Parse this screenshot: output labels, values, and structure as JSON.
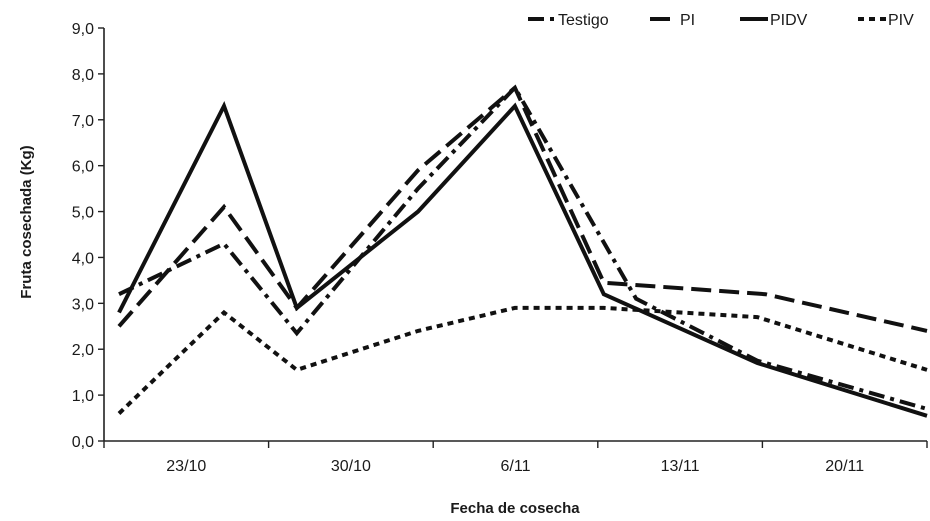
{
  "chart_data": {
    "type": "line",
    "xlabel": "Fecha de cosecha",
    "ylabel": "Fruta cosechada (Kg)",
    "ylim": [
      0,
      9
    ],
    "yticks": [
      "0,0",
      "1,0",
      "2,0",
      "3,0",
      "4,0",
      "5,0",
      "6,0",
      "7,0",
      "8,0",
      "9,0"
    ],
    "category_labels": [
      "23/10",
      "30/10",
      "6/11",
      "13/11",
      "20/11"
    ],
    "x_points": [
      0,
      0.5,
      1,
      1.5,
      2,
      2.5,
      3,
      3.5,
      4,
      4.5,
      5
    ],
    "grid": false,
    "legend_position": "top-right",
    "series": [
      {
        "name": "Testigo",
        "dash": "dash-dot",
        "x": [
          0,
          0.65,
          1.1,
          1.85,
          2.45,
          3.2,
          3.95,
          5
        ],
        "values": [
          3.2,
          4.3,
          2.35,
          5.5,
          7.7,
          3.1,
          1.75,
          0.7
        ]
      },
      {
        "name": "PI",
        "dash": "long-dash",
        "x": [
          0,
          0.65,
          1.1,
          1.85,
          2.45,
          3.0,
          4.0,
          5
        ],
        "values": [
          2.5,
          5.1,
          2.9,
          5.9,
          7.7,
          3.45,
          3.2,
          2.4
        ]
      },
      {
        "name": "PIDV",
        "dash": "solid",
        "x": [
          0,
          0.65,
          1.1,
          1.85,
          2.45,
          3.0,
          3.95,
          5
        ],
        "values": [
          2.8,
          7.3,
          2.9,
          5.0,
          7.3,
          3.2,
          1.7,
          0.55
        ]
      },
      {
        "name": "PIV",
        "dash": "dotted",
        "x": [
          0,
          0.65,
          1.1,
          1.85,
          2.45,
          3.0,
          3.95,
          5
        ],
        "values": [
          0.6,
          2.8,
          1.55,
          2.4,
          2.9,
          2.9,
          2.7,
          1.55
        ]
      }
    ]
  }
}
